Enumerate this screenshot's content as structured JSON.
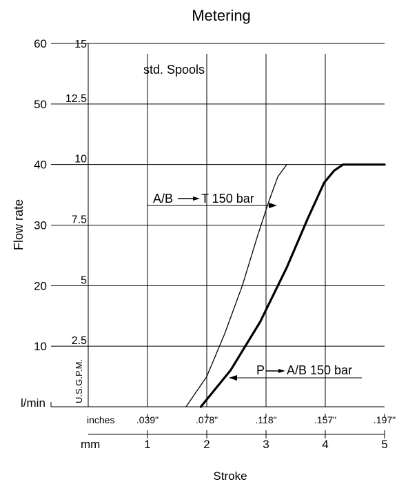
{
  "chart_data": {
    "type": "line",
    "title": "Metering",
    "xlabel": "Stroke",
    "ylabel": "Flow rate",
    "x_unit_mm": "mm",
    "x_unit_inches": "inches",
    "y_unit_lmin": "l/min",
    "y_unit_usgpm": "U.S.G.P.M.",
    "xlim": [
      0,
      5
    ],
    "ylim": [
      0,
      60
    ],
    "mm_ticks": [
      "1",
      "2",
      "3",
      "4",
      "5"
    ],
    "inch_ticks": [
      ".039\"",
      ".078\"",
      ".118\"",
      ".157\"",
      ".197\""
    ],
    "lmin_ticks": [
      "10",
      "20",
      "30",
      "40",
      "50",
      "60"
    ],
    "usgpm_ticks": [
      "2.5",
      "5",
      "7.5",
      "10",
      "12.5",
      "15"
    ],
    "grid": true,
    "annotations": {
      "spools": "std. Spools",
      "ab_t_pre": "A/B",
      "ab_t_post": "T 150 bar",
      "p_ab_pre": "P",
      "p_ab_post": "A/B 150 bar"
    },
    "series": [
      {
        "label": "A/B → T 150 bar",
        "x": [
          1.65,
          2.0,
          2.3,
          2.6,
          2.85,
          3.05,
          3.2,
          3.35
        ],
        "y": [
          0,
          5,
          12,
          20,
          28,
          34,
          38,
          40
        ]
      },
      {
        "label": "P → A/B 150 bar",
        "x": [
          1.9,
          2.4,
          2.9,
          3.35,
          3.7,
          3.98,
          4.15,
          4.3,
          6.0
        ],
        "y": [
          0,
          6,
          14,
          23,
          31,
          37,
          39,
          40,
          40
        ]
      }
    ]
  }
}
